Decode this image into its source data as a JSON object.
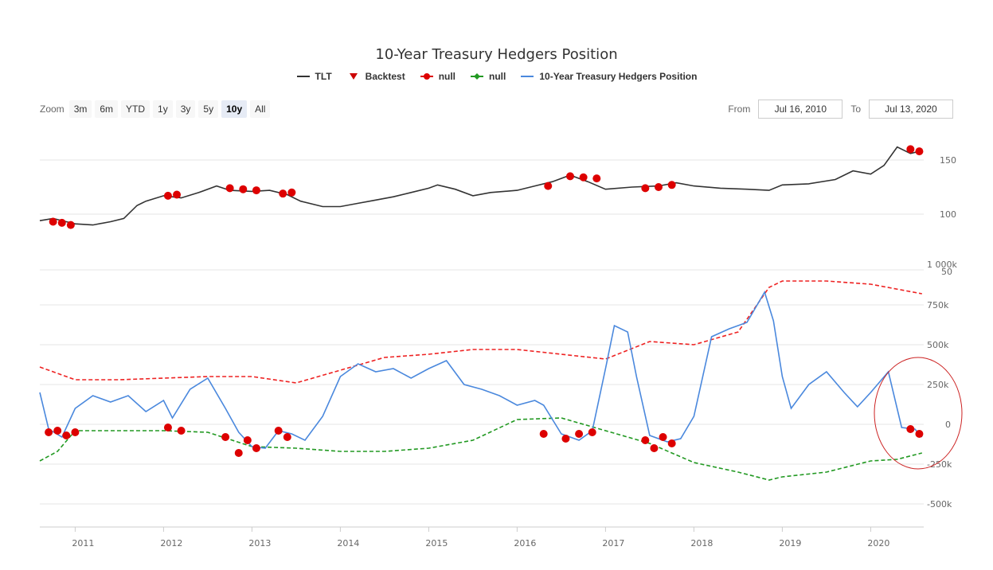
{
  "title": "10-Year Treasury Hedgers Position",
  "legend": [
    {
      "label": "TLT",
      "symbol": "line",
      "color": "#333333"
    },
    {
      "label": "Backtest",
      "symbol": "triangle",
      "color": "#cc0000"
    },
    {
      "label": "null",
      "symbol": "dot-line",
      "color": "#dd0000"
    },
    {
      "label": "null",
      "symbol": "diamond-line",
      "color": "#229922"
    },
    {
      "label": "10-Year Treasury Hedgers Position",
      "symbol": "line",
      "color": "#4a88dd"
    }
  ],
  "zoom": {
    "label": "Zoom",
    "buttons": [
      "3m",
      "6m",
      "YTD",
      "1y",
      "3y",
      "5y",
      "10y",
      "All"
    ],
    "active": "10y"
  },
  "range": {
    "from_label": "From",
    "from_value": "Jul 16, 2010",
    "to_label": "To",
    "to_value": "Jul 13, 2020"
  },
  "chart_data": [
    {
      "type": "line",
      "name": "TLT",
      "color": "#333333",
      "x_range": [
        2010.6,
        2020.6
      ],
      "y_ticks": [
        100,
        150
      ],
      "x": [
        2010.6,
        2010.75,
        2010.9,
        2011.0,
        2011.2,
        2011.4,
        2011.55,
        2011.7,
        2011.8,
        2012.0,
        2012.2,
        2012.4,
        2012.6,
        2012.75,
        2013.0,
        2013.2,
        2013.4,
        2013.55,
        2013.8,
        2014.0,
        2014.2,
        2014.4,
        2014.6,
        2014.8,
        2015.0,
        2015.1,
        2015.3,
        2015.5,
        2015.7,
        2016.0,
        2016.2,
        2016.4,
        2016.6,
        2016.8,
        2017.0,
        2017.3,
        2017.6,
        2017.8,
        2018.0,
        2018.3,
        2018.6,
        2018.85,
        2019.0,
        2019.3,
        2019.6,
        2019.8,
        2020.0,
        2020.15,
        2020.3,
        2020.45,
        2020.55
      ],
      "y": [
        94,
        96,
        93,
        91,
        90,
        93,
        96,
        108,
        112,
        117,
        115,
        120,
        126,
        122,
        121,
        122,
        118,
        112,
        107,
        107,
        110,
        113,
        116,
        120,
        124,
        127,
        123,
        117,
        120,
        122,
        126,
        130,
        136,
        130,
        123,
        125,
        126,
        129,
        126,
        124,
        123,
        122,
        127,
        128,
        132,
        140,
        137,
        145,
        162,
        156,
        158
      ]
    },
    {
      "type": "line",
      "name": "10-Year Treasury Hedgers Position",
      "color": "#4a88dd",
      "x_range": [
        2010.6,
        2020.6
      ],
      "y_ticks": [
        -500000,
        -250000,
        0,
        250000,
        500000,
        750000
      ],
      "x": [
        2010.6,
        2010.7,
        2010.85,
        2011.0,
        2011.2,
        2011.4,
        2011.6,
        2011.8,
        2012.0,
        2012.1,
        2012.3,
        2012.5,
        2012.7,
        2012.85,
        2013.0,
        2013.15,
        2013.3,
        2013.45,
        2013.6,
        2013.8,
        2014.0,
        2014.2,
        2014.4,
        2014.6,
        2014.8,
        2015.0,
        2015.2,
        2015.4,
        2015.6,
        2015.8,
        2016.0,
        2016.2,
        2016.3,
        2016.5,
        2016.7,
        2016.85,
        2017.0,
        2017.1,
        2017.25,
        2017.35,
        2017.5,
        2017.7,
        2017.85,
        2018.0,
        2018.2,
        2018.4,
        2018.6,
        2018.8,
        2018.9,
        2019.0,
        2019.1,
        2019.3,
        2019.5,
        2019.7,
        2019.85,
        2020.0,
        2020.2,
        2020.35,
        2020.5,
        2020.58
      ],
      "y": [
        200000,
        -30000,
        -80000,
        100000,
        180000,
        140000,
        180000,
        80000,
        150000,
        40000,
        220000,
        290000,
        100000,
        -50000,
        -140000,
        -150000,
        -40000,
        -60000,
        -100000,
        50000,
        300000,
        380000,
        330000,
        350000,
        290000,
        350000,
        400000,
        250000,
        220000,
        180000,
        120000,
        150000,
        120000,
        -60000,
        -100000,
        -40000,
        350000,
        620000,
        580000,
        300000,
        -70000,
        -110000,
        -90000,
        50000,
        550000,
        600000,
        640000,
        830000,
        650000,
        300000,
        100000,
        250000,
        330000,
        200000,
        110000,
        200000,
        330000,
        -20000,
        -30000,
        -80000
      ]
    },
    {
      "type": "line",
      "name": "null",
      "color": "#ee2222",
      "dashed": true,
      "x": [
        2010.6,
        2011.0,
        2011.5,
        2012.0,
        2012.5,
        2013.0,
        2013.5,
        2014.0,
        2014.5,
        2015.0,
        2015.5,
        2016.0,
        2016.5,
        2017.0,
        2017.5,
        2018.0,
        2018.5,
        2018.85,
        2019.0,
        2019.5,
        2020.0,
        2020.58
      ],
      "y": [
        360000,
        280000,
        280000,
        290000,
        300000,
        300000,
        260000,
        340000,
        420000,
        440000,
        470000,
        470000,
        440000,
        410000,
        520000,
        500000,
        580000,
        860000,
        900000,
        900000,
        880000,
        820000
      ]
    },
    {
      "type": "line",
      "name": "null",
      "color": "#229922",
      "dashed": true,
      "x": [
        2010.6,
        2010.8,
        2011.0,
        2011.5,
        2012.0,
        2012.5,
        2013.0,
        2013.5,
        2014.0,
        2014.5,
        2015.0,
        2015.5,
        2016.0,
        2016.5,
        2017.0,
        2017.5,
        2018.0,
        2018.5,
        2018.85,
        2019.0,
        2019.5,
        2020.0,
        2020.3,
        2020.58
      ],
      "y": [
        -230000,
        -170000,
        -40000,
        -40000,
        -40000,
        -50000,
        -140000,
        -150000,
        -170000,
        -170000,
        -150000,
        -100000,
        30000,
        40000,
        -40000,
        -120000,
        -240000,
        -300000,
        -350000,
        -330000,
        -300000,
        -230000,
        -220000,
        -180000
      ]
    },
    {
      "type": "scatter",
      "name": "Backtest",
      "color": "#dd0000",
      "x": [
        2010.7,
        2010.8,
        2010.9,
        2011.0,
        2012.05,
        2012.2,
        2012.7,
        2012.85,
        2012.95,
        2013.05,
        2013.3,
        2013.4,
        2016.3,
        2016.55,
        2016.7,
        2016.85,
        2017.45,
        2017.55,
        2017.65,
        2017.75,
        2020.45,
        2020.55
      ],
      "y": [
        -50000,
        -40000,
        -70000,
        -50000,
        -20000,
        -40000,
        -80000,
        -180000,
        -100000,
        -150000,
        -40000,
        -80000,
        -60000,
        -90000,
        -60000,
        -50000,
        -100000,
        -150000,
        -80000,
        -120000,
        -30000,
        -60000
      ]
    }
  ],
  "x_axis": {
    "ticks": [
      "2011",
      "2012",
      "2013",
      "2014",
      "2015",
      "2016",
      "2017",
      "2018",
      "2019",
      "2020"
    ]
  },
  "tlt_axis_labels": [
    "100",
    "150"
  ],
  "cot_axis_labels": [
    "1 000k",
    "750k",
    "500k",
    "250k",
    "0",
    "-250k",
    "-500k"
  ],
  "overlap_label": "50"
}
